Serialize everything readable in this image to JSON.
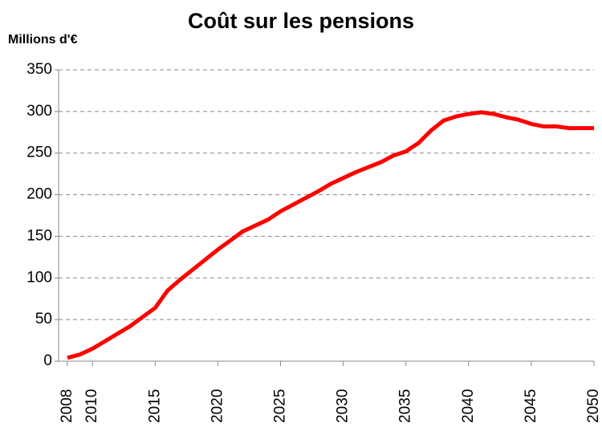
{
  "chart_data": {
    "type": "line",
    "title": "Coût sur les pensions",
    "y_label": "Millions d'€",
    "x": [
      2008,
      2009,
      2010,
      2011,
      2012,
      2013,
      2014,
      2015,
      2016,
      2017,
      2018,
      2019,
      2020,
      2021,
      2022,
      2023,
      2024,
      2025,
      2026,
      2027,
      2028,
      2029,
      2030,
      2031,
      2032,
      2033,
      2034,
      2035,
      2036,
      2037,
      2038,
      2039,
      2040,
      2041,
      2042,
      2043,
      2044,
      2045,
      2046,
      2047,
      2048,
      2049,
      2050
    ],
    "series": [
      {
        "color": "#ff0000",
        "values": [
          4,
          8,
          15,
          24,
          33,
          42,
          53,
          64,
          85,
          98,
          110,
          122,
          134,
          145,
          156,
          163,
          170,
          180,
          188,
          196,
          204,
          213,
          220,
          227,
          233,
          239,
          247,
          252,
          262,
          277,
          289,
          294,
          297,
          299,
          297,
          293,
          290,
          285,
          282,
          282,
          280,
          280,
          280
        ]
      }
    ],
    "xlim": [
      2007.3,
      2050
    ],
    "xticks": [
      2008,
      2010,
      2015,
      2020,
      2025,
      2030,
      2035,
      2040,
      2045,
      2050
    ],
    "ylim": [
      0,
      350
    ],
    "yticks": [
      0,
      50,
      100,
      150,
      200,
      250,
      300,
      350
    ],
    "grid": true
  }
}
